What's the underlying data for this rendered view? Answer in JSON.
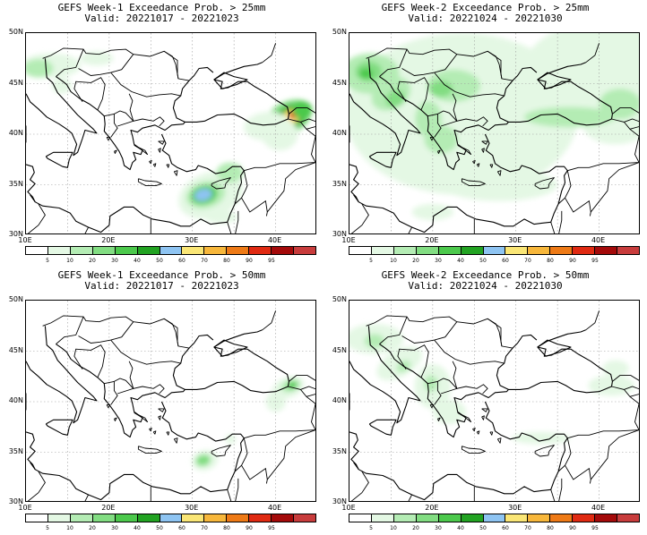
{
  "panels": [
    {
      "title": "GEFS Week-1 Exceedance Prob. > 25mm",
      "valid": "Valid: 20221017 - 20221023",
      "heat": [
        {
          "lon": 41.5,
          "lat": 41.6,
          "rx": 3.0,
          "ry": 1.6,
          "lvl": 3,
          "rot": -28
        },
        {
          "lon": 41.8,
          "lat": 41.7,
          "rx": 2.2,
          "ry": 1.1,
          "lvl": 5,
          "rot": -28
        },
        {
          "lon": 42.0,
          "lat": 41.8,
          "rx": 1.4,
          "ry": 0.7,
          "lvl": 7,
          "rot": -28
        },
        {
          "lon": 42.3,
          "lat": 42.0,
          "rx": 0.8,
          "ry": 0.4,
          "lvl": 10,
          "rot": -28
        },
        {
          "lon": 43.2,
          "lat": 42.4,
          "rx": 1.2,
          "ry": 0.9,
          "lvl": 4,
          "rot": 0
        },
        {
          "lon": 39.0,
          "lat": 40.8,
          "rx": 2.8,
          "ry": 1.4,
          "lvl": 1,
          "rot": -5
        },
        {
          "lon": 40.5,
          "lat": 40.0,
          "rx": 2.2,
          "ry": 1.6,
          "lvl": 1,
          "rot": 0
        },
        {
          "lon": 32.2,
          "lat": 34.0,
          "rx": 4.0,
          "ry": 2.2,
          "lvl": 1,
          "rot": -20
        },
        {
          "lon": 31.6,
          "lat": 34.0,
          "rx": 2.4,
          "ry": 1.3,
          "lvl": 2,
          "rot": -15
        },
        {
          "lon": 31.4,
          "lat": 34.0,
          "rx": 1.6,
          "ry": 0.9,
          "lvl": 4,
          "rot": -15
        },
        {
          "lon": 31.3,
          "lat": 34.0,
          "rx": 1.1,
          "ry": 0.6,
          "lvl": 6,
          "rot": -15
        },
        {
          "lon": 34.5,
          "lat": 36.2,
          "rx": 1.6,
          "ry": 1.0,
          "lvl": 2,
          "rot": 0
        },
        {
          "lon": 33.5,
          "lat": 31.8,
          "rx": 2.0,
          "ry": 0.6,
          "lvl": 1,
          "rot": 0
        },
        {
          "lon": 13.0,
          "lat": 46.8,
          "rx": 3.6,
          "ry": 1.2,
          "lvl": 1,
          "rot": 0
        },
        {
          "lon": 11.5,
          "lat": 46.5,
          "rx": 1.8,
          "ry": 0.9,
          "lvl": 2,
          "rot": 0
        },
        {
          "lon": 14.3,
          "lat": 44.8,
          "rx": 1.2,
          "ry": 0.8,
          "lvl": 1,
          "rot": 0
        },
        {
          "lon": 18.5,
          "lat": 47.5,
          "rx": 2.0,
          "ry": 0.7,
          "lvl": 1,
          "rot": 0
        }
      ]
    },
    {
      "title": "GEFS Week-2 Exceedance Prob. > 25mm",
      "valid": "Valid: 20221024 - 20221030",
      "heat": [
        {
          "lon": 23.5,
          "lat": 42.0,
          "rx": 14.0,
          "ry": 8.0,
          "lvl": 1,
          "rot": 0
        },
        {
          "lon": 40.0,
          "lat": 46.5,
          "rx": 9.0,
          "ry": 4.5,
          "lvl": 1,
          "rot": 0
        },
        {
          "lon": 42.0,
          "lat": 41.0,
          "rx": 4.0,
          "ry": 2.0,
          "lvl": 1,
          "rot": 0
        },
        {
          "lon": 28.0,
          "lat": 35.0,
          "rx": 7.0,
          "ry": 1.6,
          "lvl": 1,
          "rot": 0
        },
        {
          "lon": 20.0,
          "lat": 32.3,
          "rx": 2.5,
          "ry": 0.8,
          "lvl": 1,
          "rot": 0
        },
        {
          "lon": 12.5,
          "lat": 46.0,
          "rx": 3.5,
          "ry": 2.0,
          "lvl": 2,
          "rot": 0
        },
        {
          "lon": 15.0,
          "lat": 44.0,
          "rx": 2.5,
          "ry": 1.5,
          "lvl": 2,
          "rot": -30
        },
        {
          "lon": 19.5,
          "lat": 41.5,
          "rx": 1.6,
          "ry": 1.8,
          "lvl": 2,
          "rot": 0
        },
        {
          "lon": 22.5,
          "lat": 44.8,
          "rx": 3.2,
          "ry": 1.6,
          "lvl": 2,
          "rot": 0
        },
        {
          "lon": 21.0,
          "lat": 39.5,
          "rx": 2.0,
          "ry": 1.4,
          "lvl": 2,
          "rot": 0
        },
        {
          "lon": 36.5,
          "lat": 41.7,
          "rx": 5.5,
          "ry": 1.0,
          "lvl": 2,
          "rot": 0
        },
        {
          "lon": 42.5,
          "lat": 43.0,
          "rx": 2.5,
          "ry": 1.5,
          "lvl": 2,
          "rot": 0
        },
        {
          "lon": 12.3,
          "lat": 46.2,
          "rx": 1.6,
          "ry": 1.0,
          "lvl": 3,
          "rot": 0
        },
        {
          "lon": 15.5,
          "lat": 43.5,
          "rx": 1.2,
          "ry": 0.8,
          "lvl": 3,
          "rot": -30
        },
        {
          "lon": 21.0,
          "lat": 44.5,
          "rx": 1.4,
          "ry": 0.8,
          "lvl": 3,
          "rot": 0
        },
        {
          "lon": 12.0,
          "lat": 46.0,
          "rx": 0.8,
          "ry": 0.5,
          "lvl": 4,
          "rot": 0
        }
      ]
    },
    {
      "title": "GEFS Week-1 Exceedance Prob. > 50mm",
      "valid": "Valid: 20221017 - 20221023",
      "heat": [
        {
          "lon": 41.5,
          "lat": 41.4,
          "rx": 2.0,
          "ry": 1.0,
          "lvl": 1,
          "rot": -20
        },
        {
          "lon": 41.8,
          "lat": 41.6,
          "rx": 1.2,
          "ry": 0.6,
          "lvl": 2,
          "rot": -20
        },
        {
          "lon": 42.0,
          "lat": 41.6,
          "rx": 0.6,
          "ry": 0.35,
          "lvl": 4,
          "rot": -20
        },
        {
          "lon": 40.0,
          "lat": 40.0,
          "rx": 1.2,
          "ry": 1.0,
          "lvl": 1,
          "rot": 0
        },
        {
          "lon": 31.5,
          "lat": 34.2,
          "rx": 1.6,
          "ry": 1.0,
          "lvl": 1,
          "rot": -15
        },
        {
          "lon": 31.3,
          "lat": 34.2,
          "rx": 0.9,
          "ry": 0.55,
          "lvl": 3,
          "rot": -15
        },
        {
          "lon": 34.6,
          "lat": 36.3,
          "rx": 0.6,
          "ry": 0.5,
          "lvl": 1,
          "rot": 0
        }
      ]
    },
    {
      "title": "GEFS Week-2 Exceedance Prob. > 50mm",
      "valid": "Valid: 20221024 - 20221030",
      "heat": [
        {
          "lon": 13.0,
          "lat": 46.2,
          "rx": 3.5,
          "ry": 1.5,
          "lvl": 1,
          "rot": 0
        },
        {
          "lon": 16.0,
          "lat": 43.8,
          "rx": 3.0,
          "ry": 1.3,
          "lvl": 1,
          "rot": -30
        },
        {
          "lon": 20.0,
          "lat": 41.5,
          "rx": 2.2,
          "ry": 2.2,
          "lvl": 1,
          "rot": 0
        },
        {
          "lon": 22.0,
          "lat": 39.0,
          "rx": 2.0,
          "ry": 1.2,
          "lvl": 1,
          "rot": 0
        },
        {
          "lon": 33.0,
          "lat": 36.4,
          "rx": 3.5,
          "ry": 0.6,
          "lvl": 1,
          "rot": 0
        },
        {
          "lon": 41.5,
          "lat": 41.6,
          "rx": 2.8,
          "ry": 1.0,
          "lvl": 1,
          "rot": 0
        },
        {
          "lon": 42.0,
          "lat": 43.3,
          "rx": 1.6,
          "ry": 0.8,
          "lvl": 1,
          "rot": 0
        },
        {
          "lon": 13.0,
          "lat": 46.0,
          "rx": 1.2,
          "ry": 0.7,
          "lvl": 2,
          "rot": 0
        },
        {
          "lon": 16.5,
          "lat": 43.5,
          "rx": 0.9,
          "ry": 0.5,
          "lvl": 2,
          "rot": -30
        },
        {
          "lon": 19.8,
          "lat": 41.8,
          "rx": 0.8,
          "ry": 0.8,
          "lvl": 2,
          "rot": 0
        }
      ]
    }
  ],
  "lat_labels": [
    "50N",
    "45N",
    "40N",
    "35N",
    "30N"
  ],
  "lon_labels": [
    "10E",
    "20E",
    "30E",
    "40E"
  ],
  "colorbar": {
    "labels": [
      "5",
      "10",
      "20",
      "30",
      "40",
      "50",
      "60",
      "70",
      "80",
      "90",
      "95"
    ],
    "colors": [
      "#ffffff",
      "#e4f8e4",
      "#b4ecb4",
      "#82dd82",
      "#4cc94c",
      "#22a322",
      "#8ec4f2",
      "#fae676",
      "#f7b73b",
      "#ee7a16",
      "#e02a12",
      "#a40a0a",
      "#c83c3c"
    ]
  },
  "map": {
    "lon_min": 10,
    "lon_max": 45,
    "lat_min": 30,
    "lat_max": 50
  }
}
